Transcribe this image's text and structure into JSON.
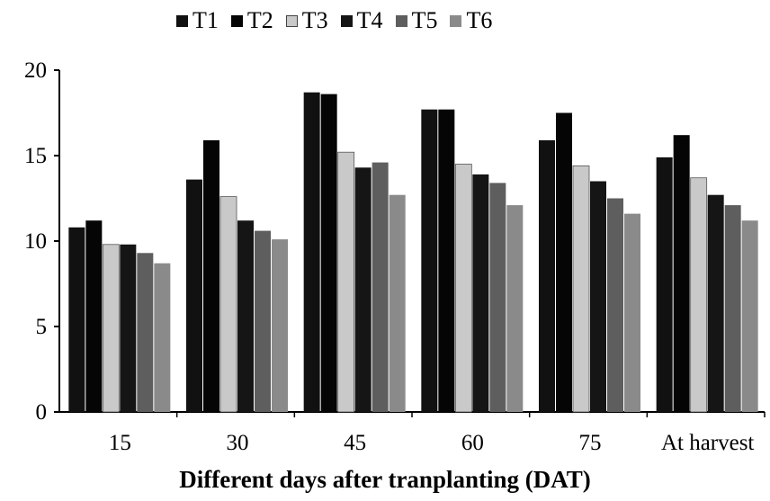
{
  "chart_data": {
    "type": "bar",
    "categories": [
      "15",
      "30",
      "45",
      "60",
      "75",
      "At harvest"
    ],
    "series": [
      {
        "name": "T1",
        "values": [
          10.8,
          13.6,
          18.7,
          17.7,
          15.9,
          14.9
        ],
        "color": "#111111"
      },
      {
        "name": "T2",
        "values": [
          11.2,
          15.9,
          18.6,
          17.7,
          17.5,
          16.2
        ],
        "color": "#050505"
      },
      {
        "name": "T3",
        "values": [
          9.8,
          12.6,
          15.2,
          14.5,
          14.4,
          13.7
        ],
        "color": "#c9c9c9"
      },
      {
        "name": "T4",
        "values": [
          9.8,
          11.2,
          14.3,
          13.9,
          13.5,
          12.7
        ],
        "color": "#151515"
      },
      {
        "name": "T5",
        "values": [
          9.3,
          10.6,
          14.6,
          13.4,
          12.5,
          12.1
        ],
        "color": "#5e5e5e"
      },
      {
        "name": "T6",
        "values": [
          8.7,
          10.1,
          12.7,
          12.1,
          11.6,
          11.2
        ],
        "color": "#8a8a8a"
      }
    ],
    "xlabel": "Different days after tranplanting (DAT)",
    "ylabel": "",
    "ylim": [
      0,
      20
    ],
    "yticks": [
      0,
      5,
      10,
      15,
      20
    ],
    "grid": false,
    "legend_position": "top"
  }
}
